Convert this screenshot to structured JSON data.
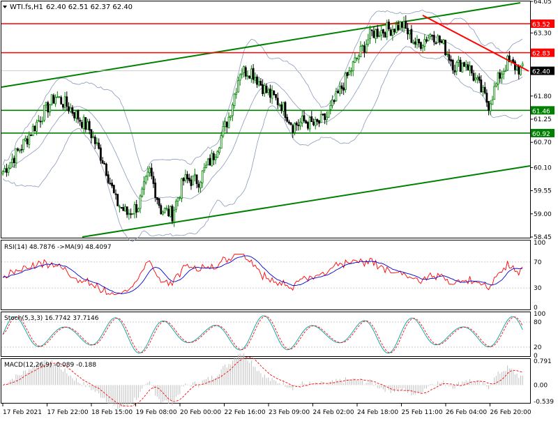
{
  "header": {
    "symbol": "WTI.fs,H1",
    "ohlc": "62.40 62.51 62.37 62.40"
  },
  "colors": {
    "bull": "#008000",
    "bear": "#000000",
    "resistance": "#ff0000",
    "support": "#008000",
    "channel": "#008000",
    "bands": "#8899bb",
    "rsi": "#ff0000",
    "rsi_ma": "#0000cc",
    "stoch_main": "#00a0a0",
    "stoch_signal": "#ff0000",
    "macd_hist": "#c0c0c0",
    "macd_signal": "#ff0000"
  },
  "price_axis": {
    "labels": [
      "64.05",
      "63.30",
      "62.83",
      "62.40",
      "61.80",
      "61.25",
      "60.70",
      "60.10",
      "59.55",
      "59.00",
      "58.45"
    ],
    "range": [
      58.45,
      64.05
    ]
  },
  "levels": [
    {
      "value": "63.52",
      "role": "resistance"
    },
    {
      "value": "62.83",
      "role": "resistance"
    },
    {
      "value": "61.46",
      "role": "support"
    },
    {
      "value": "60.92",
      "role": "support"
    }
  ],
  "current_price": "62.40",
  "time_axis": [
    "17 Feb 2021",
    "17 Feb 22:00",
    "18 Feb 15:00",
    "19 Feb 08:00",
    "20 Feb 00:00",
    "22 Feb 16:00",
    "23 Feb 09:00",
    "24 Feb 02:00",
    "24 Feb 18:00",
    "25 Feb 11:00",
    "26 Feb 04:00",
    "26 Feb 20:00"
  ],
  "rsi": {
    "label": "RSI(14) 48.7876  ->MA(9) 48.4097",
    "scale": [
      "100",
      "70",
      "30",
      "0"
    ]
  },
  "stoch": {
    "label": "Stoch(5,3,3) 16.7742 37.7146",
    "scale": [
      "100",
      "80",
      "20",
      "0"
    ]
  },
  "macd": {
    "label": "MACD(12,26,9) -0.089 -0.188",
    "scale": [
      "0.791",
      "0.00",
      "-0.539"
    ]
  },
  "chart_data": {
    "type": "candlestick",
    "symbol": "WTI.fs",
    "timeframe": "H1",
    "y_range": [
      58.45,
      64.05
    ],
    "key_points": [
      {
        "x": 0,
        "y": 60.0
      },
      {
        "x": 10,
        "y": 60.6
      },
      {
        "x": 20,
        "y": 61.3
      },
      {
        "x": 28,
        "y": 61.8
      },
      {
        "x": 36,
        "y": 61.5
      },
      {
        "x": 46,
        "y": 61.0
      },
      {
        "x": 54,
        "y": 60.2
      },
      {
        "x": 60,
        "y": 59.3
      },
      {
        "x": 66,
        "y": 59.0
      },
      {
        "x": 72,
        "y": 59.2
      },
      {
        "x": 78,
        "y": 60.0
      },
      {
        "x": 84,
        "y": 59.1
      },
      {
        "x": 90,
        "y": 59.0
      },
      {
        "x": 96,
        "y": 59.8
      },
      {
        "x": 104,
        "y": 59.8
      },
      {
        "x": 112,
        "y": 60.4
      },
      {
        "x": 120,
        "y": 61.3
      },
      {
        "x": 126,
        "y": 62.4
      },
      {
        "x": 132,
        "y": 62.4
      },
      {
        "x": 140,
        "y": 61.9
      },
      {
        "x": 148,
        "y": 61.6
      },
      {
        "x": 154,
        "y": 61.1
      },
      {
        "x": 160,
        "y": 61.2
      },
      {
        "x": 166,
        "y": 61.1
      },
      {
        "x": 172,
        "y": 61.3
      },
      {
        "x": 180,
        "y": 62.0
      },
      {
        "x": 188,
        "y": 62.7
      },
      {
        "x": 196,
        "y": 63.3
      },
      {
        "x": 206,
        "y": 63.4
      },
      {
        "x": 212,
        "y": 63.5
      },
      {
        "x": 220,
        "y": 63.0
      },
      {
        "x": 228,
        "y": 63.3
      },
      {
        "x": 234,
        "y": 63.0
      },
      {
        "x": 240,
        "y": 62.5
      },
      {
        "x": 246,
        "y": 62.6
      },
      {
        "x": 252,
        "y": 62.1
      },
      {
        "x": 258,
        "y": 61.6
      },
      {
        "x": 264,
        "y": 62.3
      },
      {
        "x": 268,
        "y": 62.6
      },
      {
        "x": 272,
        "y": 62.5
      },
      {
        "x": 276,
        "y": 62.4
      }
    ]
  }
}
